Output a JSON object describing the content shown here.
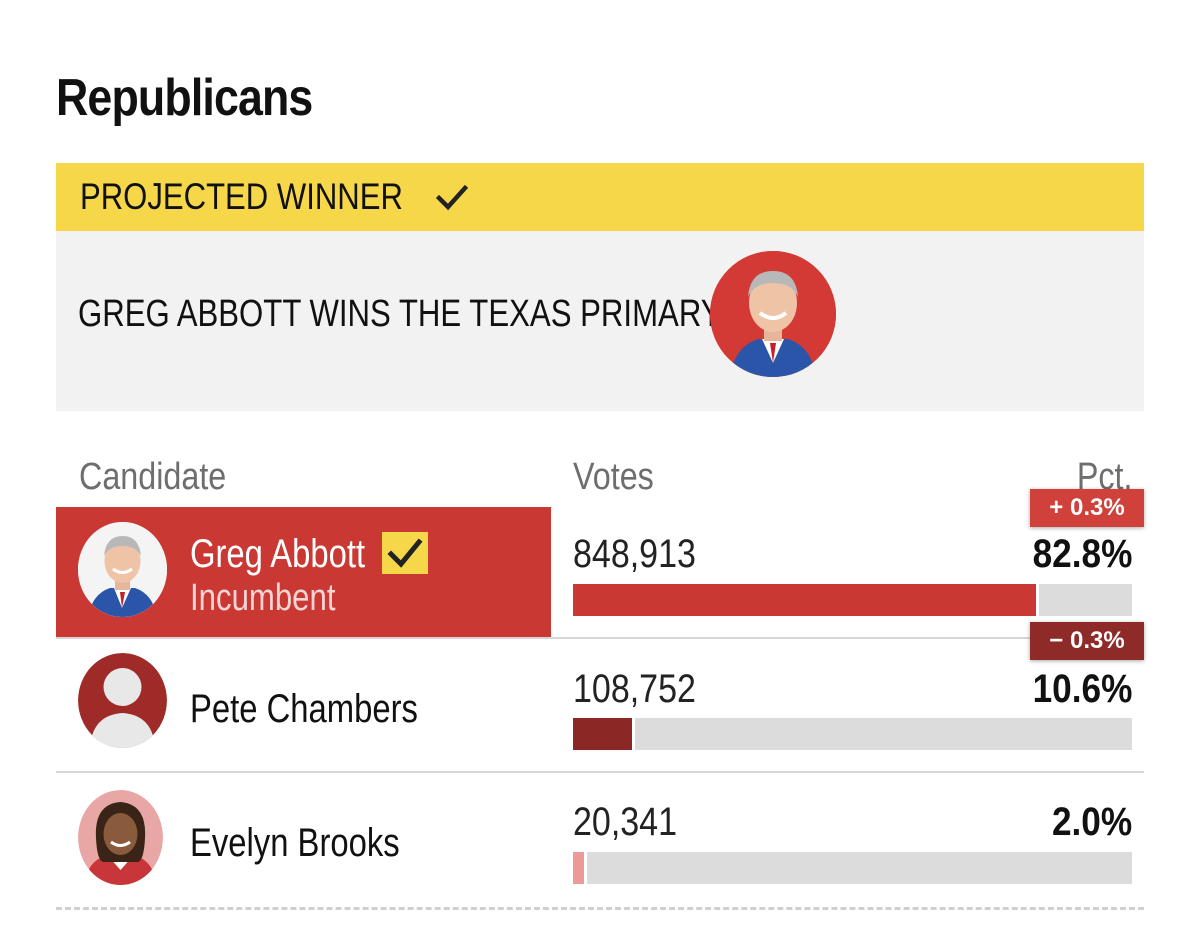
{
  "section": {
    "title": "Republicans"
  },
  "projected": {
    "label": "PROJECTED WINNER",
    "headline": "GREG ABBOTT WINS THE TEXAS PRIMARY"
  },
  "table": {
    "headers": {
      "candidate": "Candidate",
      "votes": "Votes",
      "pct": "Pct."
    },
    "rows": [
      {
        "name": "Greg Abbott",
        "subtitle": "Incumbent",
        "votes": "848,913",
        "pct": "82.8%",
        "pct_value": 82.8,
        "change": "+ 0.3%",
        "winner": true,
        "bar_color": "#c93833"
      },
      {
        "name": "Pete Chambers",
        "subtitle": "",
        "votes": "108,752",
        "pct": "10.6%",
        "pct_value": 10.6,
        "change": "− 0.3%",
        "winner": false,
        "bar_color": "#8b2725"
      },
      {
        "name": "Evelyn Brooks",
        "subtitle": "",
        "votes": "20,341",
        "pct": "2.0%",
        "pct_value": 2.0,
        "change": "",
        "winner": false,
        "bar_color": "#ec9a98"
      }
    ]
  },
  "colors": {
    "winner_yellow": "#f7d74a",
    "republican_red": "#c93833",
    "dark_red": "#8b2725",
    "light_red": "#ec9a98",
    "panel_gray": "#f2f2f2",
    "track_gray": "#dcdcdc"
  }
}
